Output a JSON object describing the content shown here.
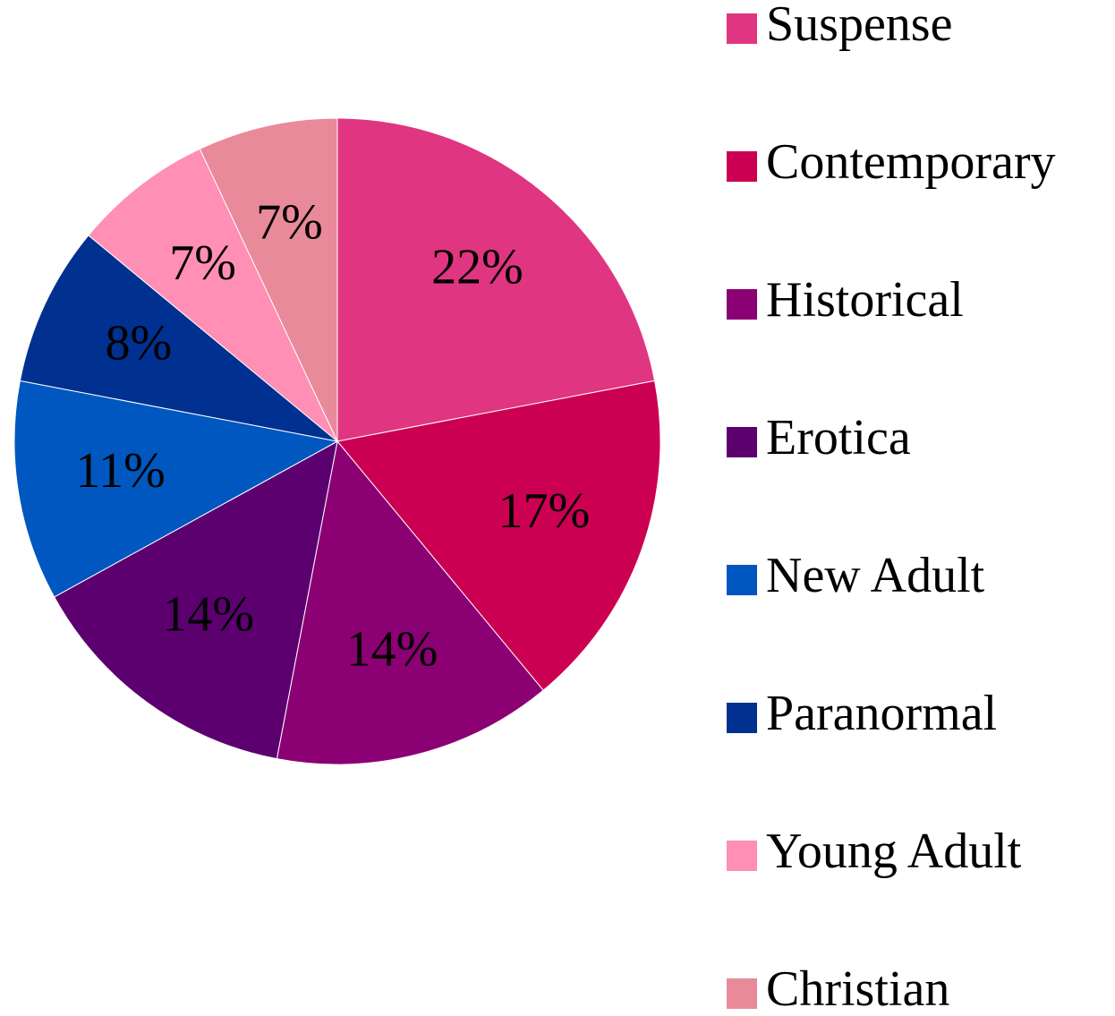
{
  "chart_data": {
    "type": "pie",
    "categories": [
      "Suspense",
      "Contemporary",
      "Historical",
      "Erotica",
      "New Adult",
      "Paranormal",
      "Young Adult",
      "Christian"
    ],
    "values": [
      22,
      17,
      14,
      14,
      11,
      8,
      7,
      7
    ],
    "value_labels": [
      "22%",
      "17%",
      "14%",
      "14%",
      "11%",
      "8%",
      "7%",
      "7%"
    ],
    "colors": [
      "#e03580",
      "#cc0052",
      "#8b0073",
      "#5c0070",
      "#0057c0",
      "#003090",
      "#ff8fb4",
      "#e88a9a"
    ],
    "legend": "right"
  }
}
